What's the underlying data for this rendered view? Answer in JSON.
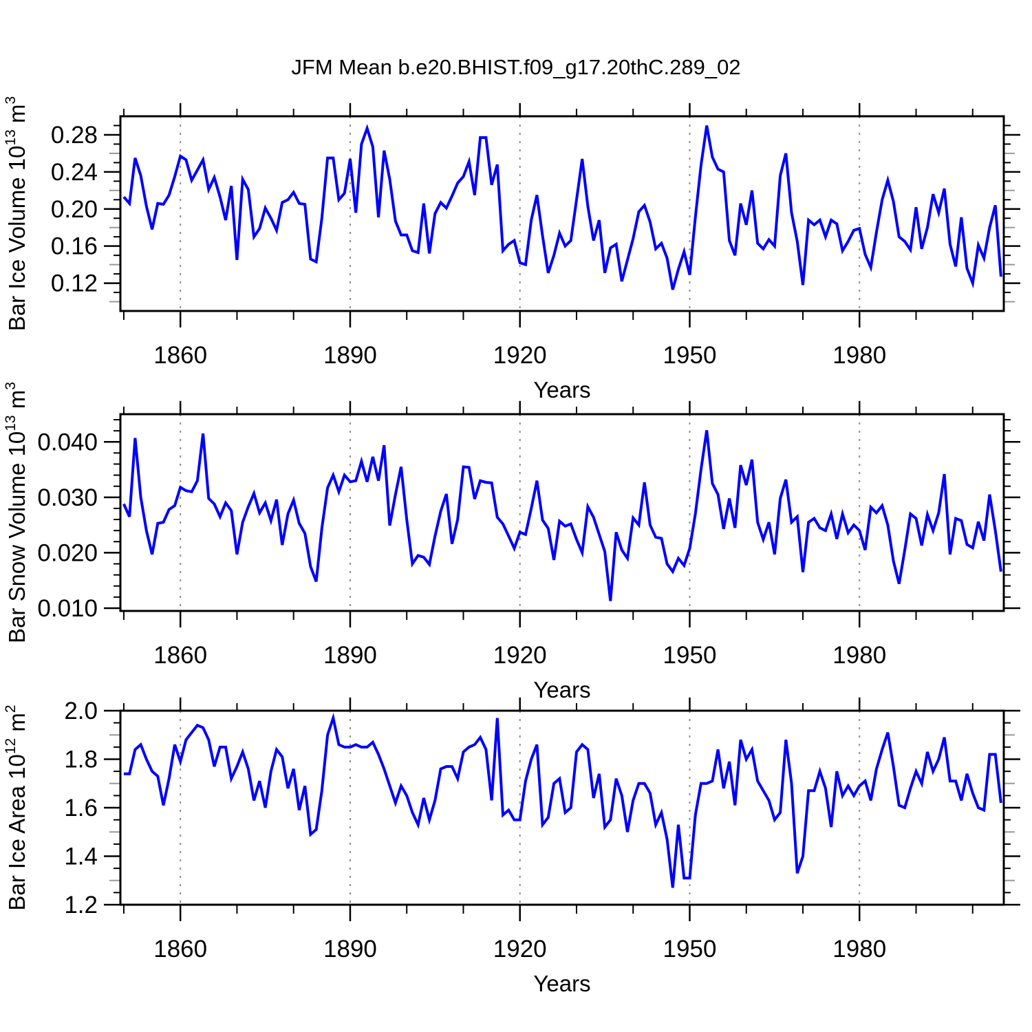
{
  "title": "JFM Mean b.e20.BHIST.f09_g17.20thC.289_02",
  "colors": {
    "line": "#0000ff",
    "frame": "#000000",
    "grid": "#8c8c8c",
    "mid_tick": "#999999",
    "text": "#000000"
  },
  "x_axis": {
    "label": "Years",
    "major_ticks": [
      1860,
      1890,
      1920,
      1950,
      1980
    ],
    "minor_ticks": [
      1850,
      1870,
      1880,
      1900,
      1910,
      1930,
      1940,
      1960,
      1970,
      1990,
      2000
    ],
    "xlim": [
      1849.4,
      2005.5
    ],
    "gridlines_at_major": true
  },
  "chart_data": [
    {
      "type": "line",
      "title": "Bar Ice Volume 10^13 m^3",
      "ylabel_parts": [
        {
          "t": "Bar Ice Volume 10",
          "sup": false
        },
        {
          "t": "13",
          "sup": true
        },
        {
          "t": " m",
          "sup": false
        },
        {
          "t": "3",
          "sup": true
        }
      ],
      "xlabel": "Years",
      "x_start": 1850,
      "x_end": 2005,
      "ylim": [
        0.09,
        0.3
      ],
      "yticks": {
        "values": [
          0.12,
          0.16,
          0.2,
          0.24,
          0.28
        ],
        "labels": [
          "0.12",
          "0.16",
          "0.20",
          "0.24",
          "0.28"
        ]
      },
      "y_minor_step": 0.01,
      "values": [
        0.213,
        0.206,
        0.255,
        0.236,
        0.203,
        0.178,
        0.206,
        0.205,
        0.215,
        0.235,
        0.257,
        0.253,
        0.231,
        0.242,
        0.253,
        0.221,
        0.234,
        0.213,
        0.188,
        0.225,
        0.145,
        0.232,
        0.221,
        0.17,
        0.179,
        0.201,
        0.19,
        0.177,
        0.207,
        0.21,
        0.218,
        0.206,
        0.205,
        0.146,
        0.143,
        0.19,
        0.255,
        0.255,
        0.21,
        0.217,
        0.254,
        0.196,
        0.27,
        0.287,
        0.267,
        0.191,
        0.263,
        0.232,
        0.187,
        0.172,
        0.172,
        0.155,
        0.153,
        0.206,
        0.152,
        0.195,
        0.207,
        0.201,
        0.214,
        0.228,
        0.235,
        0.251,
        0.215,
        0.277,
        0.277,
        0.226,
        0.248,
        0.155,
        0.162,
        0.166,
        0.142,
        0.14,
        0.188,
        0.215,
        0.171,
        0.131,
        0.15,
        0.174,
        0.16,
        0.166,
        0.21,
        0.254,
        0.203,
        0.166,
        0.188,
        0.131,
        0.158,
        0.162,
        0.122,
        0.145,
        0.168,
        0.197,
        0.204,
        0.186,
        0.157,
        0.163,
        0.147,
        0.113,
        0.135,
        0.154,
        0.129,
        0.191,
        0.247,
        0.29,
        0.256,
        0.243,
        0.24,
        0.166,
        0.15,
        0.206,
        0.183,
        0.22,
        0.163,
        0.157,
        0.167,
        0.16,
        0.236,
        0.26,
        0.196,
        0.165,
        0.118,
        0.188,
        0.183,
        0.188,
        0.17,
        0.188,
        0.184,
        0.155,
        0.165,
        0.177,
        0.179,
        0.151,
        0.137,
        0.175,
        0.21,
        0.231,
        0.208,
        0.17,
        0.165,
        0.156,
        0.202,
        0.157,
        0.18,
        0.216,
        0.196,
        0.222,
        0.162,
        0.138,
        0.191,
        0.136,
        0.12,
        0.161,
        0.147,
        0.18,
        0.204,
        0.127
      ]
    },
    {
      "type": "line",
      "title": "Bar Snow Volume 10^13 m^3",
      "ylabel_parts": [
        {
          "t": "Bar Snow Volume 10",
          "sup": false
        },
        {
          "t": "13",
          "sup": true
        },
        {
          "t": " m",
          "sup": false
        },
        {
          "t": "3",
          "sup": true
        }
      ],
      "xlabel": "Years",
      "x_start": 1850,
      "x_end": 2005,
      "ylim": [
        0.0095,
        0.045
      ],
      "yticks": {
        "values": [
          0.01,
          0.02,
          0.03,
          0.04
        ],
        "labels": [
          "0.010",
          "0.020",
          "0.030",
          "0.040"
        ]
      },
      "y_minor_step": 0.002,
      "values": [
        0.0288,
        0.0265,
        0.0407,
        0.03,
        0.024,
        0.0197,
        0.0253,
        0.0255,
        0.0278,
        0.0285,
        0.0318,
        0.0312,
        0.031,
        0.033,
        0.0415,
        0.0298,
        0.0288,
        0.0265,
        0.029,
        0.0276,
        0.0197,
        0.0255,
        0.0283,
        0.0307,
        0.0272,
        0.029,
        0.0258,
        0.0296,
        0.0214,
        0.027,
        0.0295,
        0.0253,
        0.0235,
        0.0175,
        0.0148,
        0.0244,
        0.0317,
        0.034,
        0.031,
        0.034,
        0.0328,
        0.033,
        0.0365,
        0.0328,
        0.0373,
        0.033,
        0.0394,
        0.0249,
        0.0305,
        0.0355,
        0.026,
        0.018,
        0.0195,
        0.0192,
        0.0179,
        0.023,
        0.0275,
        0.0306,
        0.0216,
        0.026,
        0.0355,
        0.0354,
        0.0297,
        0.033,
        0.0327,
        0.0326,
        0.0264,
        0.0252,
        0.023,
        0.0208,
        0.0237,
        0.0233,
        0.028,
        0.033,
        0.0259,
        0.0244,
        0.0187,
        0.0257,
        0.0248,
        0.0252,
        0.0224,
        0.02,
        0.0283,
        0.0264,
        0.0233,
        0.0202,
        0.0113,
        0.0237,
        0.0205,
        0.019,
        0.0263,
        0.025,
        0.0327,
        0.025,
        0.0228,
        0.0226,
        0.018,
        0.0166,
        0.019,
        0.0177,
        0.0208,
        0.027,
        0.035,
        0.0421,
        0.0325,
        0.0305,
        0.0243,
        0.0298,
        0.0245,
        0.0358,
        0.0322,
        0.0368,
        0.0255,
        0.0224,
        0.0255,
        0.0197,
        0.0298,
        0.0332,
        0.0255,
        0.0265,
        0.0165,
        0.0255,
        0.0262,
        0.0245,
        0.024,
        0.027,
        0.0225,
        0.027,
        0.0236,
        0.025,
        0.024,
        0.0205,
        0.0282,
        0.0272,
        0.0285,
        0.025,
        0.0185,
        0.0144,
        0.0205,
        0.027,
        0.0262,
        0.0213,
        0.0269,
        0.024,
        0.0272,
        0.0342,
        0.0197,
        0.0262,
        0.0258,
        0.0215,
        0.0209,
        0.0256,
        0.0222,
        0.0305,
        0.024,
        0.0166
      ]
    },
    {
      "type": "line",
      "title": "Bar Ice Area 10^12 m^2",
      "ylabel_parts": [
        {
          "t": "Bar Ice Area 10",
          "sup": false
        },
        {
          "t": "12",
          "sup": true
        },
        {
          "t": " m",
          "sup": false
        },
        {
          "t": "2",
          "sup": true
        }
      ],
      "xlabel": "Years",
      "x_start": 1850,
      "x_end": 2005,
      "ylim": [
        1.2,
        2.0
      ],
      "yticks": {
        "values": [
          1.2,
          1.4,
          1.6,
          1.8,
          2.0
        ],
        "labels": [
          "1.2",
          "1.4",
          "1.6",
          "1.8",
          "2.0"
        ]
      },
      "y_minor_step": 0.05,
      "values": [
        1.74,
        1.74,
        1.84,
        1.86,
        1.8,
        1.75,
        1.73,
        1.61,
        1.72,
        1.86,
        1.79,
        1.88,
        1.91,
        1.94,
        1.93,
        1.88,
        1.77,
        1.85,
        1.85,
        1.72,
        1.77,
        1.83,
        1.76,
        1.63,
        1.71,
        1.6,
        1.75,
        1.84,
        1.81,
        1.68,
        1.76,
        1.59,
        1.69,
        1.49,
        1.51,
        1.67,
        1.9,
        1.97,
        1.86,
        1.85,
        1.85,
        1.86,
        1.85,
        1.85,
        1.87,
        1.82,
        1.76,
        1.69,
        1.62,
        1.69,
        1.65,
        1.58,
        1.53,
        1.64,
        1.55,
        1.63,
        1.76,
        1.77,
        1.77,
        1.72,
        1.83,
        1.85,
        1.86,
        1.89,
        1.84,
        1.63,
        1.97,
        1.57,
        1.59,
        1.55,
        1.55,
        1.71,
        1.8,
        1.86,
        1.53,
        1.56,
        1.7,
        1.72,
        1.58,
        1.6,
        1.83,
        1.86,
        1.84,
        1.64,
        1.74,
        1.52,
        1.55,
        1.72,
        1.65,
        1.5,
        1.63,
        1.7,
        1.7,
        1.66,
        1.53,
        1.58,
        1.47,
        1.27,
        1.53,
        1.31,
        1.31,
        1.57,
        1.7,
        1.7,
        1.71,
        1.84,
        1.68,
        1.79,
        1.61,
        1.88,
        1.8,
        1.84,
        1.71,
        1.67,
        1.63,
        1.55,
        1.58,
        1.88,
        1.7,
        1.33,
        1.4,
        1.67,
        1.67,
        1.75,
        1.68,
        1.52,
        1.75,
        1.65,
        1.69,
        1.65,
        1.69,
        1.71,
        1.63,
        1.76,
        1.84,
        1.91,
        1.77,
        1.61,
        1.6,
        1.68,
        1.75,
        1.7,
        1.83,
        1.75,
        1.8,
        1.89,
        1.71,
        1.71,
        1.63,
        1.74,
        1.66,
        1.6,
        1.59,
        1.82,
        1.82,
        1.62
      ]
    }
  ]
}
